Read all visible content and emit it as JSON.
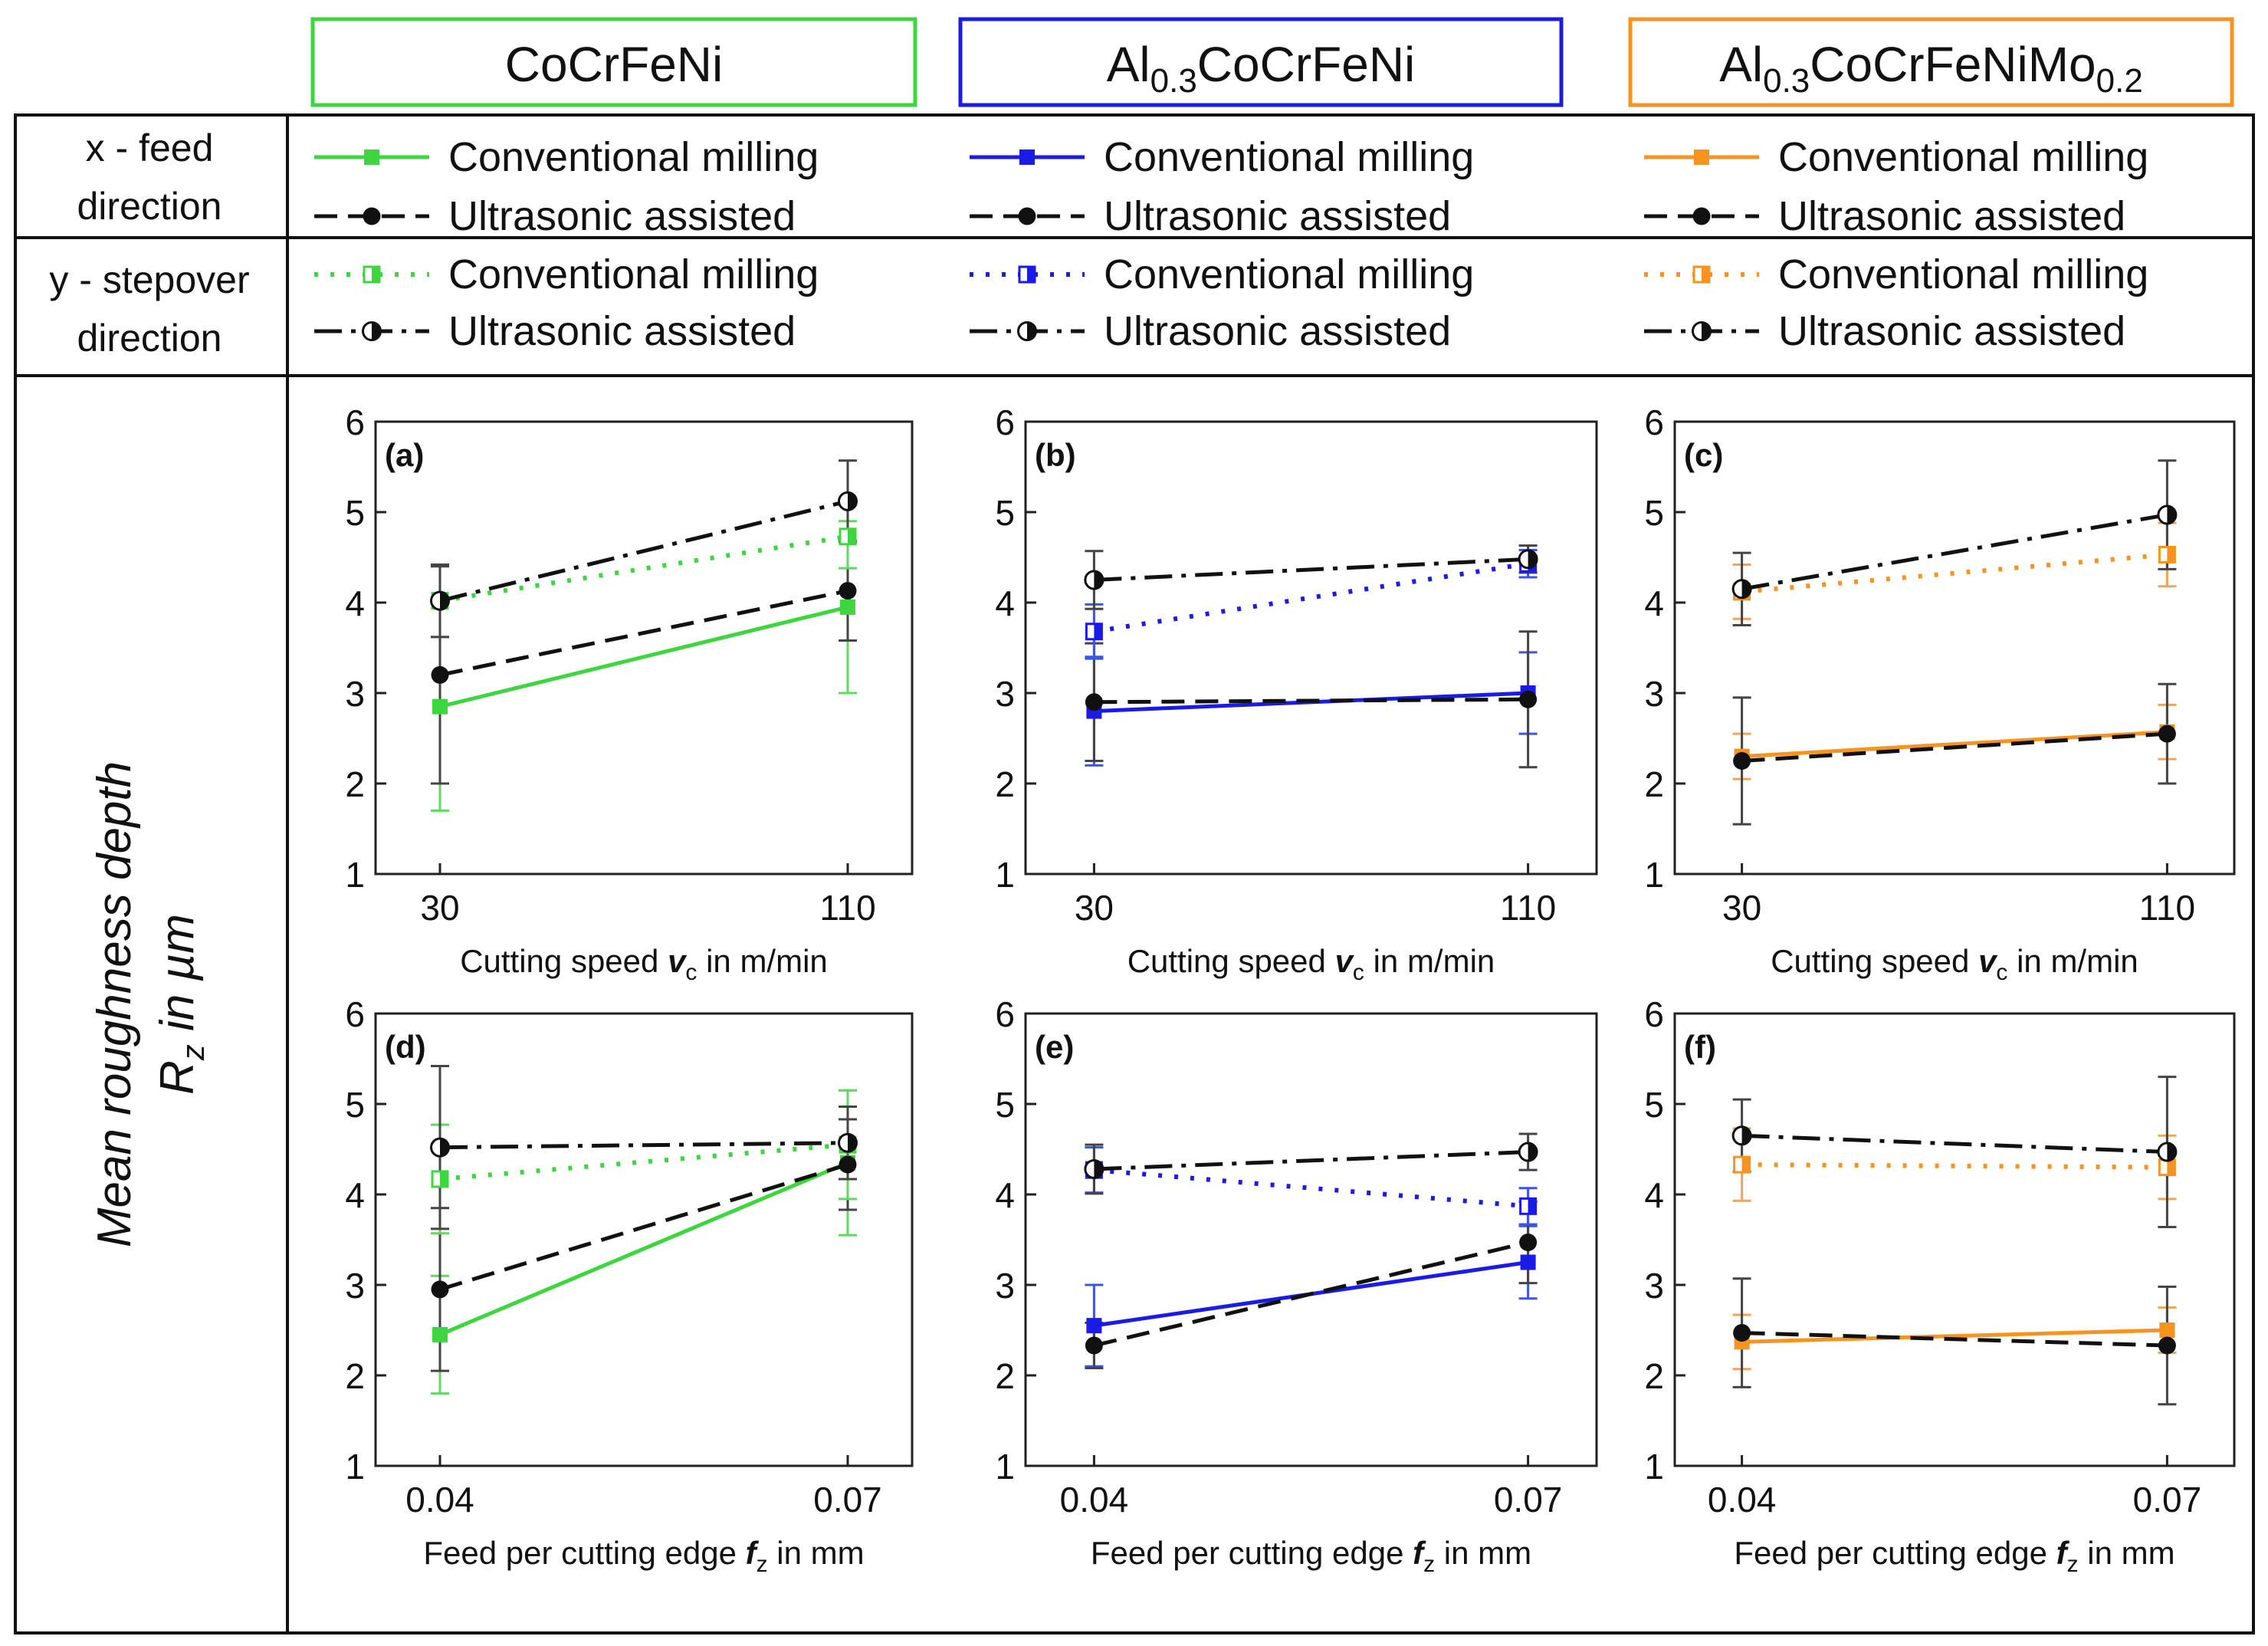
{
  "colors": {
    "green": "#3ed63e",
    "blue": "#1b1be8",
    "orange": "#f7931e",
    "black": "#111111",
    "green_err": "#5fd95f",
    "blue_err": "#3b55e8",
    "orange_err": "#f4a455",
    "black_err": "#444444"
  },
  "materials": [
    {
      "key": "green",
      "base": "CoCrFeNi",
      "parts": [
        {
          "t": "CoCrFeNi",
          "sub": false
        }
      ]
    },
    {
      "key": "blue",
      "base": "Al0.3CoCrFeNi",
      "parts": [
        {
          "t": "Al",
          "sub": false
        },
        {
          "t": "0.3",
          "sub": true
        },
        {
          "t": "CoCrFeNi",
          "sub": false
        }
      ]
    },
    {
      "key": "orange",
      "base": "Al0.3CoCrFeNiMo0.2",
      "parts": [
        {
          "t": "Al",
          "sub": false
        },
        {
          "t": "0.3",
          "sub": true
        },
        {
          "t": "CoCrFeNiMo",
          "sub": false
        },
        {
          "t": "0.2",
          "sub": true
        }
      ]
    }
  ],
  "legend": {
    "x_label_line1": "x - feed",
    "x_label_line2": "direction",
    "y_label_line1": "y - stepover",
    "y_label_line2": "direction",
    "conventional": "Conventional milling",
    "ultrasonic": "Ultrasonic assisted"
  },
  "y_axis_label": {
    "line1": "Mean roughness depth",
    "line2_symbol": "R",
    "line2_sub": "z",
    "line2_rest": " in µm"
  },
  "chart_data": [
    {
      "id": "a",
      "panel_label": "(a)",
      "type": "line",
      "material": "CoCrFeNi",
      "color": "green",
      "xlabel": "Cutting speed v_c in m/min",
      "xlabel_parts": {
        "pre": "Cutting speed ",
        "var": "v",
        "sub": "c",
        "post": " in m/min"
      },
      "categories": [
        "30",
        "110"
      ],
      "ylim": [
        1,
        6
      ],
      "yticks": [
        1,
        2,
        3,
        4,
        5,
        6
      ],
      "series": [
        {
          "name": "Conventional milling (x)",
          "values": [
            2.85,
            3.95
          ],
          "errors": [
            1.15,
            0.95
          ]
        },
        {
          "name": "Ultrasonic assisted (x)",
          "values": [
            3.2,
            4.13
          ],
          "errors": [
            1.2,
            0.55
          ]
        },
        {
          "name": "Conventional milling (y)",
          "values": [
            4.02,
            4.73
          ],
          "errors": [
            0.4,
            0.35
          ]
        },
        {
          "name": "Ultrasonic assisted (y)",
          "values": [
            4.02,
            5.12
          ],
          "errors": [
            0.4,
            0.45
          ]
        }
      ]
    },
    {
      "id": "b",
      "panel_label": "(b)",
      "type": "line",
      "material": "Al0.3CoCrFeNi",
      "color": "blue",
      "xlabel": "Cutting speed v_c in m/min",
      "xlabel_parts": {
        "pre": "Cutting speed ",
        "var": "v",
        "sub": "c",
        "post": " in m/min"
      },
      "categories": [
        "30",
        "110"
      ],
      "ylim": [
        1,
        6
      ],
      "yticks": [
        1,
        2,
        3,
        4,
        5,
        6
      ],
      "series": [
        {
          "name": "Conventional milling (x)",
          "values": [
            2.8,
            3.0
          ],
          "errors": [
            0.6,
            0.45
          ]
        },
        {
          "name": "Ultrasonic assisted (x)",
          "values": [
            2.9,
            2.93
          ],
          "errors": [
            0.65,
            0.75
          ]
        },
        {
          "name": "Conventional milling (y)",
          "values": [
            3.68,
            4.43
          ],
          "errors": [
            0.3,
            0.15
          ]
        },
        {
          "name": "Ultrasonic assisted (y)",
          "values": [
            4.25,
            4.48
          ],
          "errors": [
            0.32,
            0.15
          ]
        }
      ]
    },
    {
      "id": "c",
      "panel_label": "(c)",
      "type": "line",
      "material": "Al0.3CoCrFeNiMo0.2",
      "color": "orange",
      "xlabel": "Cutting speed v_c in m/min",
      "xlabel_parts": {
        "pre": "Cutting speed ",
        "var": "v",
        "sub": "c",
        "post": " in m/min"
      },
      "categories": [
        "30",
        "110"
      ],
      "ylim": [
        1,
        6
      ],
      "yticks": [
        1,
        2,
        3,
        4,
        5,
        6
      ],
      "series": [
        {
          "name": "Conventional milling (x)",
          "values": [
            2.3,
            2.57
          ],
          "errors": [
            0.25,
            0.3
          ]
        },
        {
          "name": "Ultrasonic assisted (x)",
          "values": [
            2.25,
            2.55
          ],
          "errors": [
            0.7,
            0.55
          ]
        },
        {
          "name": "Conventional milling (y)",
          "values": [
            4.12,
            4.53
          ],
          "errors": [
            0.3,
            0.35
          ]
        },
        {
          "name": "Ultrasonic assisted (y)",
          "values": [
            4.15,
            4.97
          ],
          "errors": [
            0.4,
            0.6
          ]
        }
      ]
    },
    {
      "id": "d",
      "panel_label": "(d)",
      "type": "line",
      "material": "CoCrFeNi",
      "color": "green",
      "xlabel": "Feed per cutting edge f_z in mm",
      "xlabel_parts": {
        "pre": "Feed per cutting edge ",
        "var": "f",
        "sub": "z",
        "post": " in mm"
      },
      "categories": [
        "0.04",
        "0.07"
      ],
      "ylim": [
        1,
        6
      ],
      "yticks": [
        1,
        2,
        3,
        4,
        5,
        6
      ],
      "series": [
        {
          "name": "Conventional milling (x)",
          "values": [
            2.45,
            4.35
          ],
          "errors": [
            0.65,
            0.8
          ]
        },
        {
          "name": "Ultrasonic assisted (x)",
          "values": [
            2.95,
            4.33
          ],
          "errors": [
            0.9,
            0.5
          ]
        },
        {
          "name": "Conventional milling (y)",
          "values": [
            4.17,
            4.55
          ],
          "errors": [
            0.6,
            0.6
          ]
        },
        {
          "name": "Ultrasonic assisted (y)",
          "values": [
            4.52,
            4.57
          ],
          "errors": [
            0.9,
            0.4
          ]
        }
      ]
    },
    {
      "id": "e",
      "panel_label": "(e)",
      "type": "line",
      "material": "Al0.3CoCrFeNi",
      "color": "blue",
      "xlabel": "Feed per cutting edge f_z in mm",
      "xlabel_parts": {
        "pre": "Feed per cutting edge ",
        "var": "f",
        "sub": "z",
        "post": " in mm"
      },
      "categories": [
        "0.04",
        "0.07"
      ],
      "ylim": [
        1,
        6
      ],
      "yticks": [
        1,
        2,
        3,
        4,
        5,
        6
      ],
      "series": [
        {
          "name": "Conventional milling (x)",
          "values": [
            2.55,
            3.25
          ],
          "errors": [
            0.45,
            0.4
          ]
        },
        {
          "name": "Ultrasonic assisted (x)",
          "values": [
            2.33,
            3.47
          ],
          "errors": [
            0.25,
            0.45
          ]
        },
        {
          "name": "Conventional milling (y)",
          "values": [
            4.27,
            3.87
          ],
          "errors": [
            0.25,
            0.2
          ]
        },
        {
          "name": "Ultrasonic assisted (y)",
          "values": [
            4.28,
            4.47
          ],
          "errors": [
            0.27,
            0.2
          ]
        }
      ]
    },
    {
      "id": "f",
      "panel_label": "(f)",
      "type": "line",
      "material": "Al0.3CoCrFeNiMo0.2",
      "color": "orange",
      "xlabel": "Feed per cutting edge f_z in mm",
      "xlabel_parts": {
        "pre": "Feed per cutting edge ",
        "var": "f",
        "sub": "z",
        "post": " in mm"
      },
      "categories": [
        "0.04",
        "0.07"
      ],
      "ylim": [
        1,
        6
      ],
      "yticks": [
        1,
        2,
        3,
        4,
        5,
        6
      ],
      "series": [
        {
          "name": "Conventional milling (x)",
          "values": [
            2.37,
            2.5
          ],
          "errors": [
            0.3,
            0.25
          ]
        },
        {
          "name": "Ultrasonic assisted (x)",
          "values": [
            2.47,
            2.33
          ],
          "errors": [
            0.6,
            0.65
          ]
        },
        {
          "name": "Conventional milling (y)",
          "values": [
            4.33,
            4.3
          ],
          "errors": [
            0.4,
            0.35
          ]
        },
        {
          "name": "Ultrasonic assisted (y)",
          "values": [
            4.65,
            4.47
          ],
          "errors": [
            0.4,
            0.83
          ]
        }
      ]
    }
  ]
}
